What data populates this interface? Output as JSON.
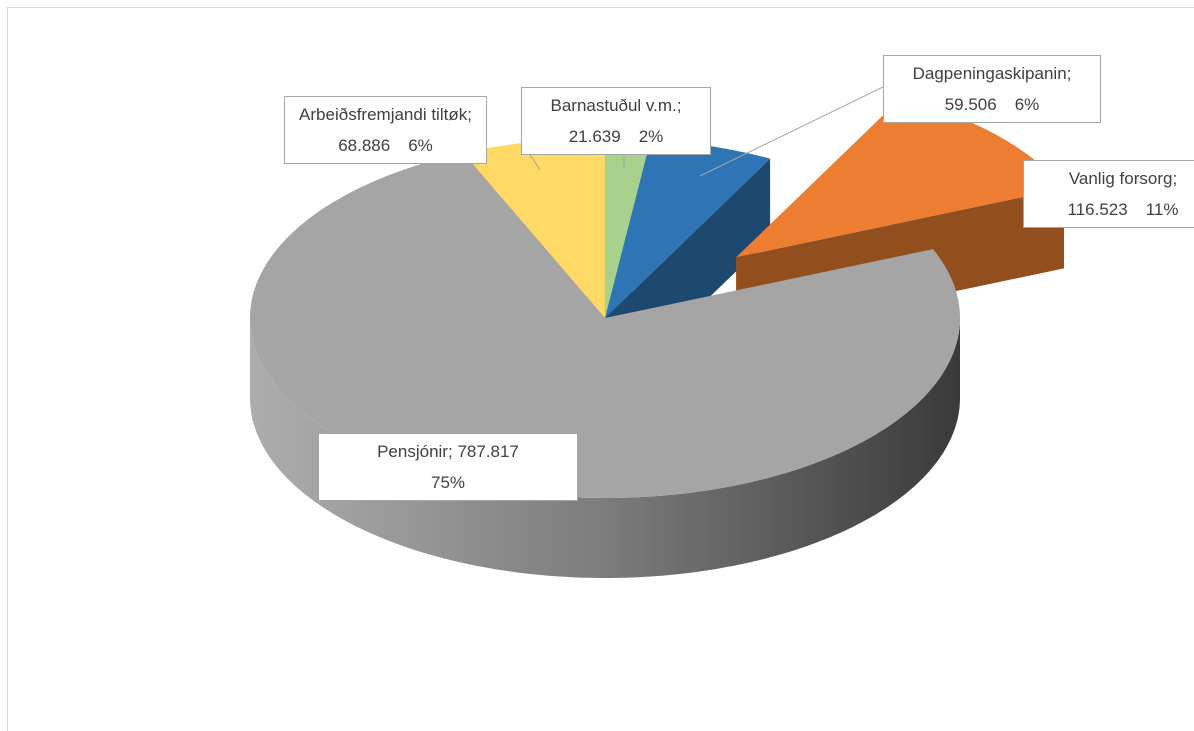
{
  "chart_data": {
    "type": "pie3d",
    "categories": [
      "Barnastuðul v.m.;",
      "Dagpeningaskipanin;",
      "Vanlig forsorg;",
      "Pensjónir;",
      "Arbeiðsfremjandi tiltøk;"
    ],
    "values": [
      21639,
      59506,
      116523,
      787817,
      68886
    ],
    "value_labels": [
      "21.639",
      "59.506",
      "116.523",
      "787.817",
      "68.886"
    ],
    "percents": [
      2,
      6,
      11,
      75,
      6
    ],
    "percent_labels": [
      "2%",
      "6%",
      "11%",
      "75%",
      "6%"
    ],
    "colors": [
      "#a9d18e",
      "#2e75b6",
      "#ed7d31",
      "#a5a5a5",
      "#ffd966"
    ],
    "explode": [
      0,
      0,
      0.5,
      0,
      0
    ]
  }
}
